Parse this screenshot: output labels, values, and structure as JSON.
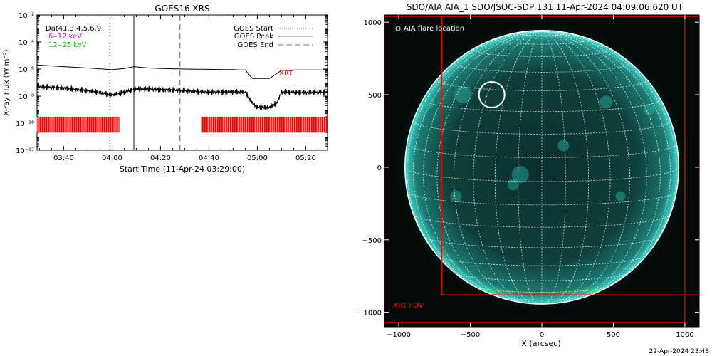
{
  "chart_data": [
    {
      "type": "line",
      "title": "GOES16 XRS",
      "xlabel": "Start Time (11-Apr-24 03:29:00)",
      "ylabel": "X-ray Flux (W m⁻²)",
      "y_scale": "log",
      "ylim": [
        1e-12,
        0.01
      ],
      "xlim": [
        "03:29",
        "05:29"
      ],
      "x_ticks": [
        "03:40",
        "04:00",
        "04:20",
        "04:40",
        "05:00",
        "05:20"
      ],
      "y_ticks": [
        "10⁻¹²",
        "10⁻¹⁰",
        "10⁻⁸",
        "10⁻⁶",
        "10⁻⁴",
        "10⁻²"
      ],
      "legend_left": [
        {
          "text": "Dat41,3,4,5,6,9",
          "color": "#000000"
        },
        {
          "text": "6‒12 keV",
          "color": "#dd00dd"
        },
        {
          "text": "12‒25 keV",
          "color": "#00cc00"
        }
      ],
      "legend_right": [
        {
          "text": "GOES Start",
          "style": "dotted"
        },
        {
          "text": "GOES Peak",
          "style": "solid"
        },
        {
          "text": "GOES End",
          "style": "dashed"
        }
      ],
      "annotations": [
        {
          "text": "XRT",
          "x": "05:08",
          "y": 1e-06,
          "color": "#ff0000"
        }
      ],
      "vlines": [
        {
          "x": "03:59",
          "style": "dotted"
        },
        {
          "x": "04:09",
          "style": "solid"
        },
        {
          "x": "04:28",
          "style": "dashed"
        }
      ],
      "series": [
        {
          "color": "#000000",
          "x": [
            "03:29",
            "03:40",
            "03:50",
            "04:00",
            "04:05",
            "04:09",
            "04:15",
            "04:20",
            "04:30",
            "04:40",
            "04:50",
            "04:55",
            "04:58",
            "05:05",
            "05:10",
            "05:15",
            "05:29"
          ],
          "y": [
            2e-06,
            1.5e-06,
            1.2e-06,
            9e-07,
            1.1e-06,
            1.5e-06,
            1.2e-06,
            1.1e-06,
            1e-06,
            9.5e-07,
            9e-07,
            8.5e-07,
            2e-07,
            2e-07,
            8e-07,
            8.5e-07,
            8.5e-07
          ]
        },
        {
          "color": "#000000",
          "x": [
            "03:29",
            "03:40",
            "03:50",
            "04:00",
            "04:05",
            "04:10",
            "04:20",
            "04:30",
            "04:40",
            "04:50",
            "04:55",
            "04:58",
            "05:00",
            "05:05",
            "05:08",
            "05:10",
            "05:20",
            "05:29"
          ],
          "y": [
            5e-08,
            4e-08,
            2.5e-08,
            1.2e-08,
            2e-08,
            3.5e-08,
            3e-08,
            2.5e-08,
            2e-08,
            2e-08,
            2e-08,
            3e-09,
            1.5e-09,
            1.5e-09,
            3e-09,
            2e-08,
            1.8e-08,
            2e-08
          ]
        }
      ],
      "xrt_coverage": [
        [
          "03:29",
          "04:03"
        ],
        [
          "04:37",
          "05:29"
        ]
      ]
    },
    {
      "type": "image",
      "title": "SDO/AIA AIA_1 SDO/JSOC-SDP 131 11-Apr-2024 04:09:06.620 UT",
      "xlabel": "X (arcsec)",
      "x_ticks": [
        -1000,
        -500,
        0,
        500,
        1000
      ],
      "y_ticks": [
        1000,
        500,
        0,
        -500,
        -1000
      ],
      "xlim": [
        -1100,
        1100
      ],
      "ylim": [
        -1100,
        1050
      ],
      "flare_legend": "AIA flare location",
      "flare_location": {
        "x": -350,
        "y": 500
      },
      "xrt_fov_label": "XRT FOV",
      "xrt_fov": {
        "x": [
          -1100,
          1000
        ],
        "y": [
          -1070,
          1040
        ]
      },
      "xrt_fov_inner": {
        "x": [
          -700,
          1100
        ],
        "y": [
          -880,
          1040
        ]
      },
      "solar_radius": 950,
      "accent_color": "#00d8d0",
      "fov_color": "#ff0000"
    }
  ],
  "timestamp": "22-Apr-2024 23:48"
}
